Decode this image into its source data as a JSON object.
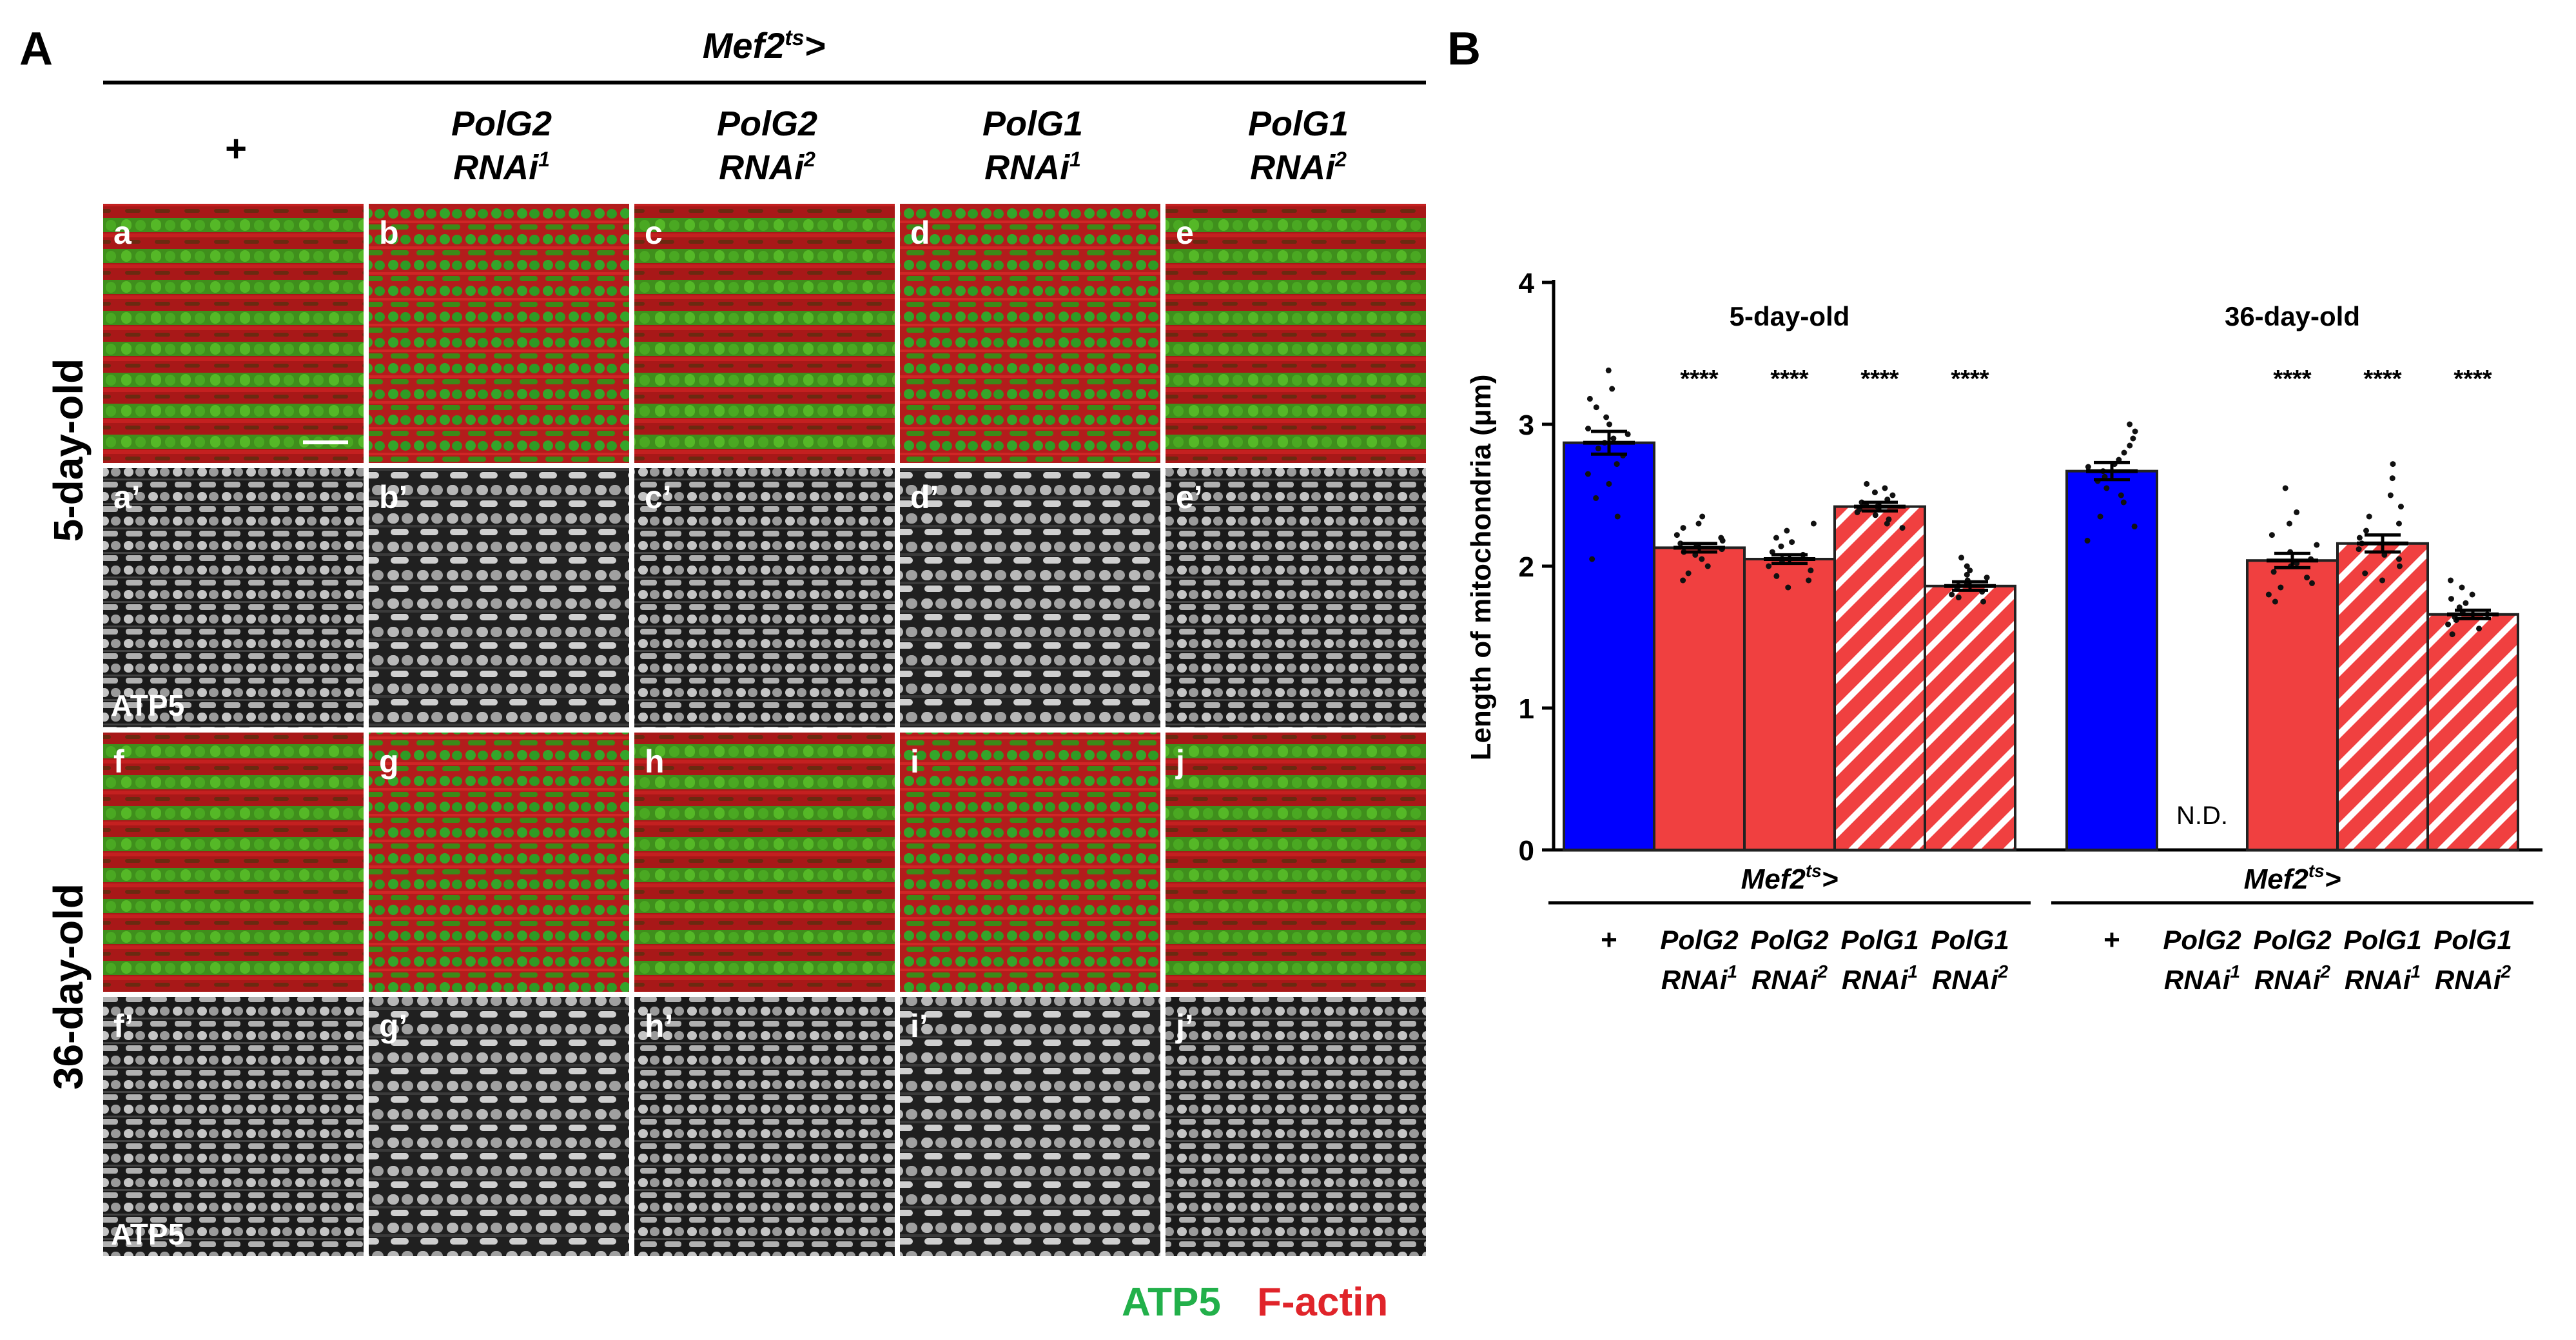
{
  "panel_a": {
    "letter": "A",
    "driver": "Mef2",
    "driver_sup": "ts",
    "driver_suffix": ">",
    "columns": [
      {
        "line1": "+",
        "line2": "",
        "sup": ""
      },
      {
        "line1": "PolG2",
        "line2": "RNAi",
        "sup": "1"
      },
      {
        "line1": "PolG2",
        "line2": "RNAi",
        "sup": "2"
      },
      {
        "line1": "PolG1",
        "line2": "RNAi",
        "sup": "1"
      },
      {
        "line1": "PolG1",
        "line2": "RNAi",
        "sup": "2"
      }
    ],
    "row_groups": [
      "5-day-old",
      "36-day-old"
    ],
    "tile_labels": [
      [
        "a",
        "b",
        "c",
        "d",
        "e"
      ],
      [
        "a’",
        "b’",
        "c’",
        "d’",
        "e’"
      ],
      [
        "f",
        "g",
        "h",
        "i",
        "j"
      ],
      [
        "f’",
        "g’",
        "h’",
        "i’",
        "j’"
      ]
    ],
    "channel_label": "ATP5",
    "legend": [
      {
        "text": "ATP5",
        "color": "#22b04a"
      },
      {
        "text": "F-actin",
        "color": "#e0242a"
      }
    ]
  },
  "chart_data": {
    "type": "bar",
    "panel_letter": "B",
    "ylabel": "Length of mitochondria (μm)",
    "ylim": [
      0,
      4
    ],
    "yticks": [
      "0",
      "1",
      "2",
      "3",
      "4"
    ],
    "groups": [
      {
        "title": "5-day-old",
        "driver": "Mef2",
        "driver_sup": "ts",
        "driver_suffix": ">",
        "bars": [
          {
            "line1": "+",
            "line2": "",
            "sup": "",
            "value": 2.87,
            "sem": 0.08,
            "fill": "#0000ff",
            "hatched": false,
            "sig": "",
            "points": [
              3.38,
              3.25,
              3.18,
              3.12,
              3.05,
              3.0,
              2.97,
              2.93,
              2.9,
              2.87,
              2.83,
              2.78,
              2.72,
              2.65,
              2.58,
              2.48,
              2.35,
              2.05
            ]
          },
          {
            "line1": "PolG2",
            "line2": "RNAi",
            "sup": "1",
            "value": 2.13,
            "sem": 0.03,
            "fill": "#f04040",
            "hatched": false,
            "sig": "****",
            "points": [
              2.35,
              2.3,
              2.27,
              2.22,
              2.2,
              2.18,
              2.16,
              2.14,
              2.12,
              2.1,
              2.08,
              2.05,
              2.0,
              1.95,
              1.9
            ]
          },
          {
            "line1": "PolG2",
            "line2": "RNAi",
            "sup": "2",
            "value": 2.05,
            "sem": 0.03,
            "fill": "#f04040",
            "hatched": false,
            "sig": "****",
            "points": [
              2.3,
              2.25,
              2.2,
              2.17,
              2.14,
              2.1,
              2.08,
              2.05,
              2.03,
              2.0,
              1.97,
              1.93,
              1.9,
              1.85
            ]
          },
          {
            "line1": "PolG1",
            "line2": "RNAi",
            "sup": "1",
            "value": 2.42,
            "sem": 0.03,
            "fill": "#f04040",
            "hatched": true,
            "sig": "****",
            "points": [
              2.58,
              2.55,
              2.52,
              2.5,
              2.47,
              2.45,
              2.43,
              2.42,
              2.4,
              2.38,
              2.36,
              2.33,
              2.3,
              2.27
            ]
          },
          {
            "line1": "PolG1",
            "line2": "RNAi",
            "sup": "2",
            "value": 1.86,
            "sem": 0.03,
            "fill": "#f04040",
            "hatched": true,
            "sig": "****",
            "points": [
              2.06,
              2.0,
              1.97,
              1.94,
              1.92,
              1.9,
              1.88,
              1.86,
              1.84,
              1.82,
              1.8,
              1.78,
              1.75
            ]
          }
        ]
      },
      {
        "title": "36-day-old",
        "driver": "Mef2",
        "driver_sup": "ts",
        "driver_suffix": ">",
        "bars": [
          {
            "line1": "+",
            "line2": "",
            "sup": "",
            "value": 2.67,
            "sem": 0.06,
            "fill": "#0000ff",
            "hatched": false,
            "sig": "",
            "points": [
              3.0,
              2.95,
              2.9,
              2.85,
              2.8,
              2.75,
              2.72,
              2.7,
              2.67,
              2.63,
              2.6,
              2.55,
              2.5,
              2.45,
              2.35,
              2.28,
              2.18
            ]
          },
          {
            "line1": "PolG2",
            "line2": "RNAi",
            "sup": "1",
            "value": null,
            "sem": null,
            "fill": "#f04040",
            "hatched": false,
            "sig": "",
            "note": "N.D.",
            "points": []
          },
          {
            "line1": "PolG2",
            "line2": "RNAi",
            "sup": "2",
            "value": 2.04,
            "sem": 0.05,
            "fill": "#f04040",
            "hatched": false,
            "sig": "****",
            "points": [
              2.55,
              2.38,
              2.3,
              2.22,
              2.15,
              2.1,
              2.05,
              2.02,
              2.0,
              1.96,
              1.92,
              1.88,
              1.85,
              1.8,
              1.75
            ]
          },
          {
            "line1": "PolG1",
            "line2": "RNAi",
            "sup": "1",
            "value": 2.16,
            "sem": 0.06,
            "fill": "#f04040",
            "hatched": true,
            "sig": "****",
            "points": [
              2.72,
              2.62,
              2.5,
              2.42,
              2.35,
              2.3,
              2.25,
              2.2,
              2.16,
              2.12,
              2.08,
              2.05,
              2.0,
              1.95,
              1.9
            ]
          },
          {
            "line1": "PolG1",
            "line2": "RNAi",
            "sup": "2",
            "value": 1.66,
            "sem": 0.03,
            "fill": "#f04040",
            "hatched": true,
            "sig": "****",
            "points": [
              1.9,
              1.85,
              1.8,
              1.77,
              1.74,
              1.71,
              1.68,
              1.66,
              1.64,
              1.62,
              1.59,
              1.56,
              1.52
            ]
          }
        ]
      }
    ]
  }
}
